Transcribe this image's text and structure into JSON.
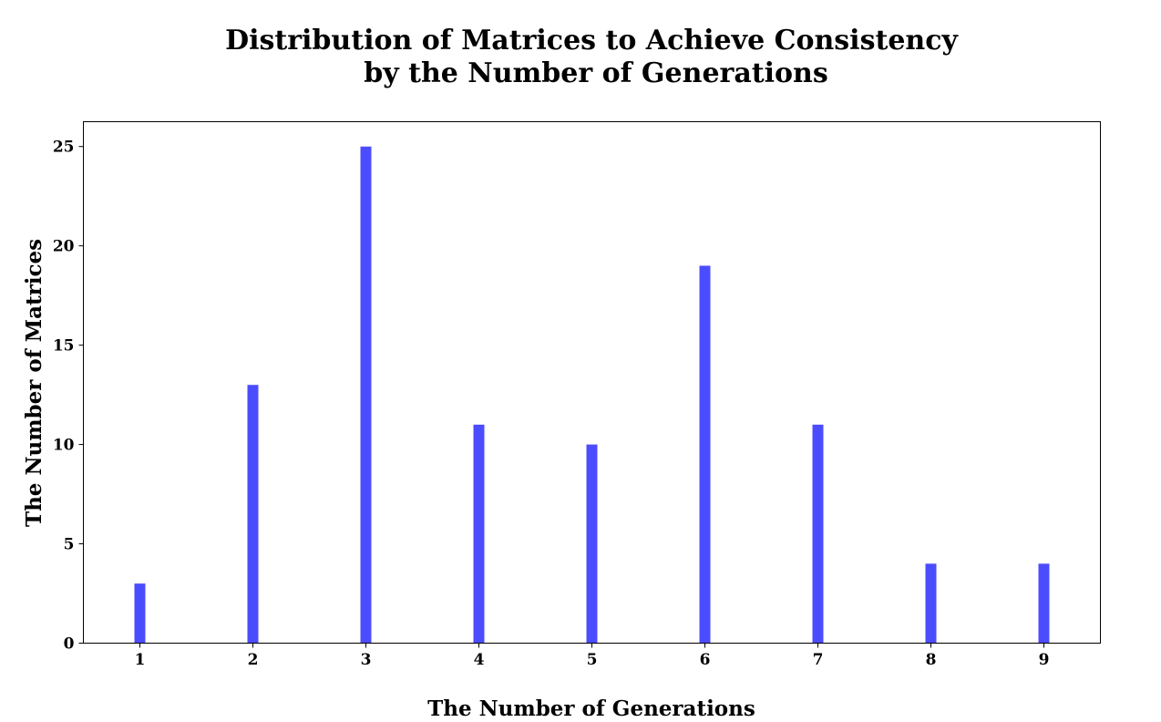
{
  "chart_data": {
    "type": "bar",
    "title_lines": [
      "Distribution of Matrices to Achieve Consistency",
      "by the Number of Generations"
    ],
    "xlabel": "The Number of Generations",
    "ylabel": "The Number of Matrices",
    "categories": [
      "1",
      "2",
      "3",
      "4",
      "5",
      "6",
      "7",
      "8",
      "9"
    ],
    "x": [
      1,
      2,
      3,
      4,
      5,
      6,
      7,
      8,
      9
    ],
    "values": [
      3,
      13,
      25,
      11,
      10,
      19,
      11,
      4,
      4
    ],
    "xlim": [
      0.5,
      9.5
    ],
    "ylim": [
      0,
      26.25
    ],
    "yticks": [
      0,
      5,
      10,
      15,
      20,
      25
    ],
    "bar_color": "#4c4cff",
    "grid": false,
    "legend": false
  }
}
